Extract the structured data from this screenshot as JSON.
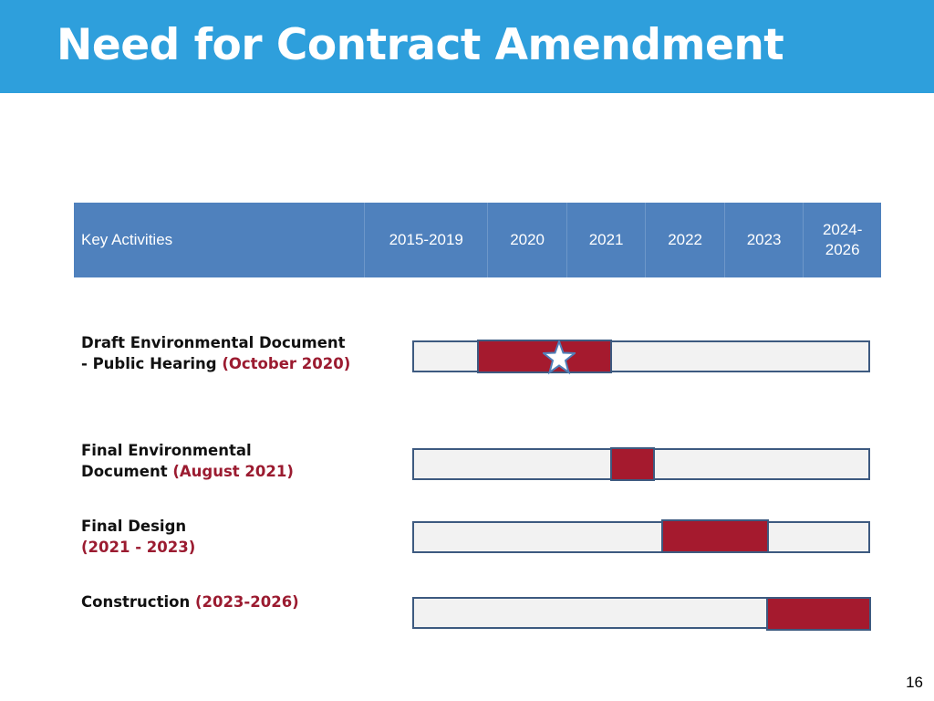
{
  "title": "Need for Contract Amendment",
  "page_number": "16",
  "chart_data": {
    "type": "bar",
    "subtype": "gantt",
    "header": [
      "Key Activities",
      "2015-2019",
      "2020",
      "2021",
      "2022",
      "2023",
      "2024-2026"
    ],
    "rows": [
      {
        "label_line1": "Draft Environmental Document",
        "label_line2": "- Public Hearing ",
        "highlight": "(October 2020)",
        "start": "2020",
        "end": "2021",
        "milestone": "October 2020"
      },
      {
        "label_line1": "Final Environmental",
        "label_line2": "Document ",
        "highlight": "(August 2021)",
        "start": "2021",
        "end": "2021"
      },
      {
        "label_line1": "Final Design",
        "label_line2": "",
        "highlight": "(2021  - 2023)",
        "start": "2021",
        "end": "2023"
      },
      {
        "label_line1": "Construction ",
        "label_line2": "",
        "highlight": "(2023-2026)",
        "start": "2023",
        "end": "2026"
      }
    ],
    "colors": {
      "bar": "#a51a2e",
      "track": "#f2f2f2",
      "header": "#4f81bd",
      "title_bar": "#2e9fdc"
    }
  }
}
